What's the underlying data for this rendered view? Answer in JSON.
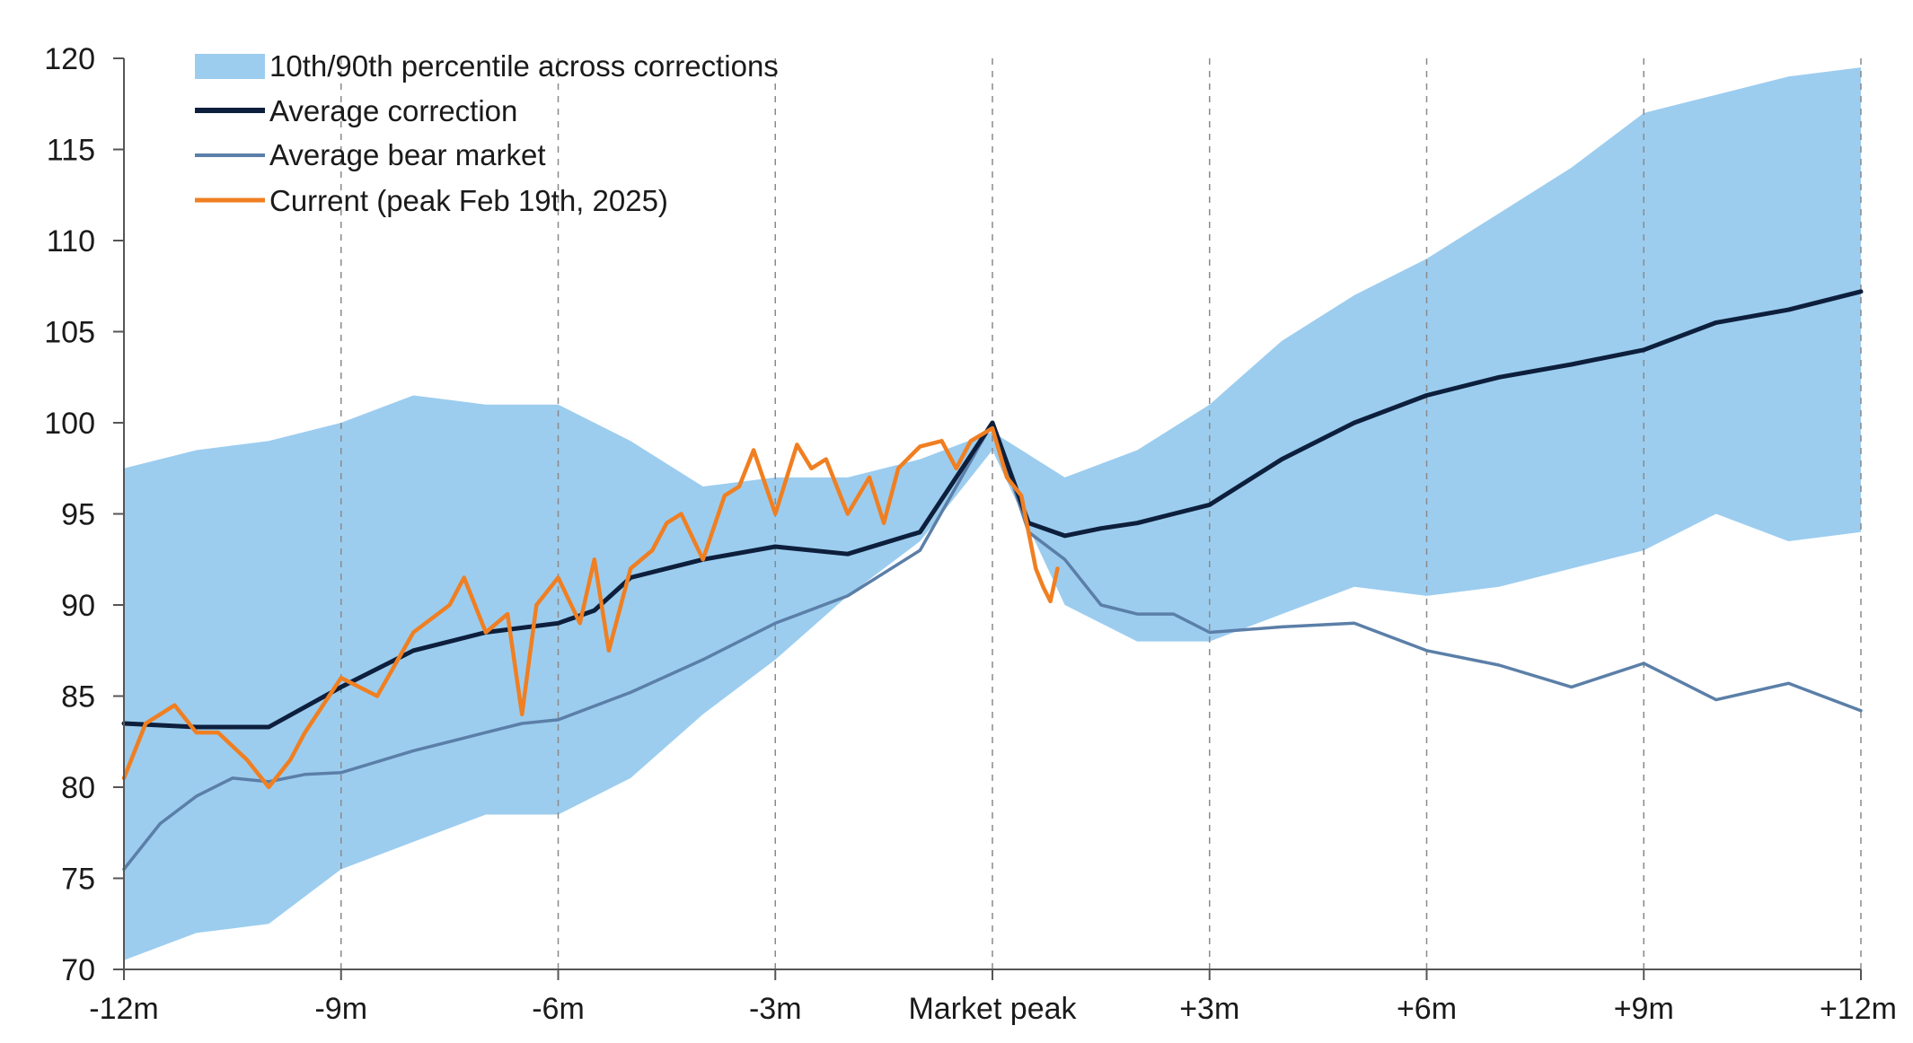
{
  "colors": {
    "band": "#9ccdef",
    "average_correction": "#0d1f3c",
    "average_bear_market": "#5b7fa8",
    "current": "#f07f22",
    "axis": "#555555",
    "gridline": "#8a8a8a",
    "text": "#1a1a1a"
  },
  "legend": {
    "band_label": "10th/90th percentile across corrections",
    "avg_correction_label": "Average correction",
    "avg_bear_label": "Average bear market",
    "current_label": "Current (peak Feb 19th, 2025)"
  },
  "chart_data": {
    "type": "line",
    "title": "",
    "xlabel": "",
    "ylabel": "",
    "ylim": [
      70,
      120
    ],
    "xlim": [
      -12,
      12
    ],
    "grid": "vertical dashed lines at each x tick",
    "legend_position": "top-left",
    "y_ticks": [
      "70",
      "75",
      "80",
      "85",
      "90",
      "95",
      "100",
      "105",
      "110",
      "115",
      "120"
    ],
    "x_ticks": [
      {
        "x": -12,
        "label": "-12m"
      },
      {
        "x": -9,
        "label": "-9m"
      },
      {
        "x": -6,
        "label": "-6m"
      },
      {
        "x": -3,
        "label": "-3m"
      },
      {
        "x": 0,
        "label": "Market peak"
      },
      {
        "x": 3,
        "label": "+3m"
      },
      {
        "x": 6,
        "label": "+6m"
      },
      {
        "x": 9,
        "label": "+9m"
      },
      {
        "x": 12,
        "label": "+12m"
      }
    ],
    "band": {
      "name": "10th/90th percentile across corrections",
      "x": [
        -12,
        -11,
        -10,
        -9,
        -8,
        -7,
        -6,
        -5,
        -4,
        -3,
        -2,
        -1,
        0,
        1,
        2,
        3,
        4,
        5,
        6,
        7,
        8,
        9,
        10,
        11,
        12
      ],
      "upper": [
        97.5,
        98.5,
        99,
        100,
        101.5,
        101,
        101,
        99,
        96.5,
        97,
        97,
        98,
        99.5,
        97,
        98.5,
        101,
        104.5,
        107,
        109,
        111.5,
        114,
        117,
        118,
        119,
        119.5
      ],
      "lower": [
        70.5,
        72,
        72.5,
        75.5,
        77,
        78.5,
        78.5,
        80.5,
        84,
        87,
        90.5,
        93.5,
        98.5,
        90,
        88,
        88,
        89.5,
        91,
        90.5,
        91,
        92,
        93,
        95,
        93.5,
        94
      ]
    },
    "series": [
      {
        "name": "Average correction",
        "x": [
          -12,
          -11,
          -10,
          -9,
          -8,
          -7,
          -6,
          -5.5,
          -5,
          -4,
          -3,
          -2,
          -1,
          0,
          0.5,
          1,
          1.5,
          2,
          2.5,
          3,
          4,
          5,
          6,
          7,
          8,
          9,
          10,
          11,
          12
        ],
        "values": [
          83.5,
          83.3,
          83.3,
          85.5,
          87.5,
          88.5,
          89,
          89.7,
          91.5,
          92.5,
          93.2,
          92.8,
          94,
          100,
          94.5,
          93.8,
          94.2,
          94.5,
          95,
          95.5,
          98,
          100,
          101.5,
          102.5,
          103.2,
          104,
          105.5,
          106.2,
          107.2
        ]
      },
      {
        "name": "Average bear market",
        "x": [
          -12,
          -11.5,
          -11,
          -10.5,
          -10,
          -9.5,
          -9,
          -8,
          -7,
          -6.5,
          -6,
          -5,
          -4,
          -3,
          -2,
          -1,
          0,
          0.5,
          1,
          1.5,
          2,
          2.5,
          3,
          4,
          5,
          6,
          7,
          8,
          9,
          10,
          11,
          12
        ],
        "values": [
          75.5,
          78,
          79.5,
          80.5,
          80.3,
          80.7,
          80.8,
          82,
          83,
          83.5,
          83.7,
          85.2,
          87,
          89,
          90.5,
          93,
          100,
          94,
          92.5,
          90,
          89.5,
          89.5,
          88.5,
          88.8,
          89,
          87.5,
          86.7,
          85.5,
          86.8,
          84.8,
          85.7,
          84.2
        ]
      },
      {
        "name": "Current (peak Feb 19th, 2025)",
        "x": [
          -12,
          -11.7,
          -11.3,
          -11,
          -10.7,
          -10.3,
          -10,
          -9.7,
          -9.5,
          -9,
          -8.5,
          -8,
          -7.5,
          -7.3,
          -7,
          -6.7,
          -6.5,
          -6.3,
          -6,
          -5.7,
          -5.5,
          -5.3,
          -5,
          -4.7,
          -4.5,
          -4.3,
          -4,
          -3.7,
          -3.5,
          -3.3,
          -3,
          -2.7,
          -2.5,
          -2.3,
          -2,
          -1.7,
          -1.5,
          -1.3,
          -1,
          -0.7,
          -0.5,
          -0.3,
          0,
          0.2,
          0.4,
          0.6,
          0.7,
          0.8,
          0.9
        ],
        "values": [
          80.5,
          83.5,
          84.5,
          83,
          83,
          81.5,
          80,
          81.5,
          83,
          86,
          85,
          88.5,
          90,
          91.5,
          88.5,
          89.5,
          84,
          90,
          91.5,
          89,
          92.5,
          87.5,
          92,
          93,
          94.5,
          95,
          92.5,
          96,
          96.5,
          98.5,
          95,
          98.8,
          97.5,
          98,
          95,
          97,
          94.5,
          97.5,
          98.7,
          99,
          97.5,
          99,
          99.7,
          97,
          96,
          92,
          91,
          90.2,
          92
        ]
      }
    ]
  }
}
